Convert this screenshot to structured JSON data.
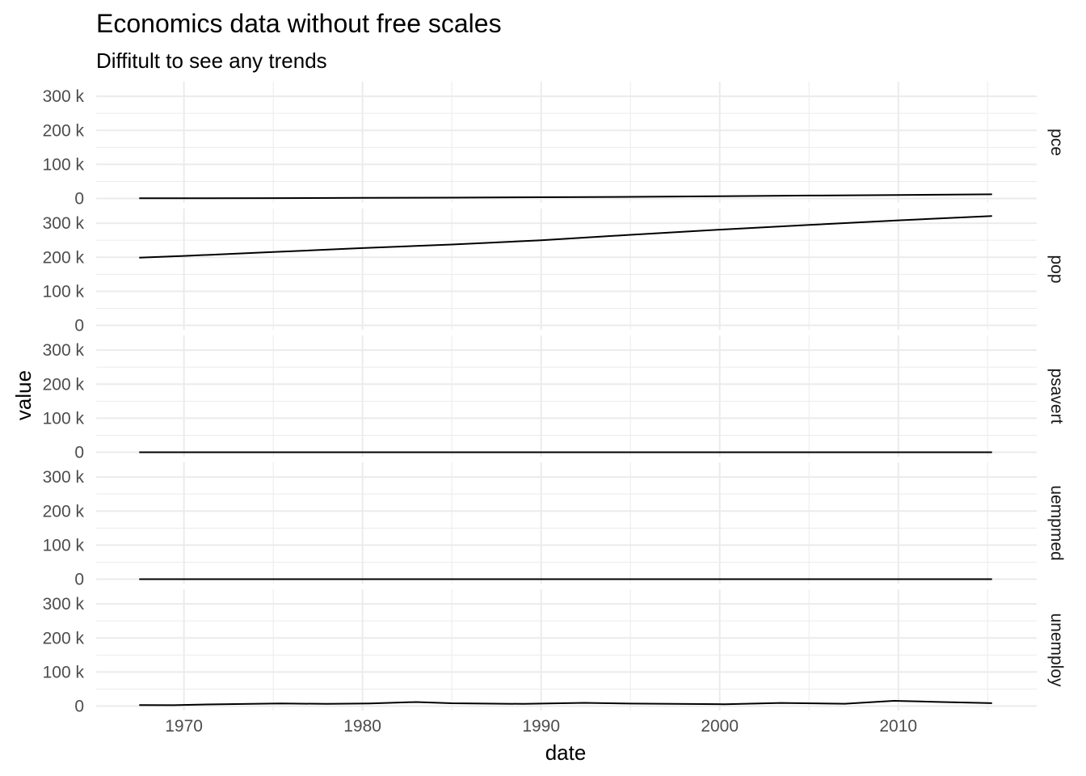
{
  "chart_data": {
    "type": "line",
    "title": "Economics data without free scales",
    "subtitle": "Diffitult to see any trends",
    "xlabel": "date",
    "ylabel": "value",
    "xlim": [
      "1965-02-01",
      "2017-10-01"
    ],
    "ylim": [
      -13000,
      343000
    ],
    "x_ticks": [
      {
        "date": "1970-01-01",
        "label": "1970"
      },
      {
        "date": "1980-01-01",
        "label": "1980"
      },
      {
        "date": "1990-01-01",
        "label": "1990"
      },
      {
        "date": "2000-01-01",
        "label": "2000"
      },
      {
        "date": "2010-01-01",
        "label": "2010"
      }
    ],
    "x_minor_ticks": [
      "1975-01-01",
      "1985-01-01",
      "1995-01-01",
      "2005-01-01",
      "2015-01-01"
    ],
    "y_ticks": [
      {
        "value": 0,
        "label": "0"
      },
      {
        "value": 100000,
        "label": "100 k"
      },
      {
        "value": 200000,
        "label": "200 k"
      },
      {
        "value": 300000,
        "label": "300 k"
      }
    ],
    "y_minor_ticks": [
      50000,
      150000,
      250000
    ],
    "grid": true,
    "facets": [
      "pce",
      "pop",
      "psavert",
      "uempmed",
      "unemploy"
    ],
    "series": [
      {
        "name": "pce",
        "points": [
          [
            "1967-07-01",
            507
          ],
          [
            "1970-01-01",
            620
          ],
          [
            "1975-01-01",
            977
          ],
          [
            "1980-01-01",
            1697
          ],
          [
            "1985-01-01",
            2540
          ],
          [
            "1990-01-01",
            3713
          ],
          [
            "1995-01-01",
            4880
          ],
          [
            "2000-01-01",
            6541
          ],
          [
            "2005-01-01",
            8535
          ],
          [
            "2010-01-01",
            10057
          ],
          [
            "2015-04-01",
            12194
          ]
        ]
      },
      {
        "name": "pop",
        "points": [
          [
            "1967-07-01",
            198712
          ],
          [
            "1970-01-01",
            203849
          ],
          [
            "1975-01-01",
            215307
          ],
          [
            "1980-01-01",
            227061
          ],
          [
            "1985-01-01",
            237468
          ],
          [
            "1990-01-01",
            249700
          ],
          [
            "1995-01-01",
            265753
          ],
          [
            "2000-01-01",
            281083
          ],
          [
            "2005-01-01",
            294768
          ],
          [
            "2010-01-01",
            308417
          ],
          [
            "2015-04-01",
            320887
          ]
        ]
      },
      {
        "name": "psavert",
        "points": [
          [
            "1967-07-01",
            12.6
          ],
          [
            "1975-01-01",
            12.8
          ],
          [
            "1985-01-01",
            10.8
          ],
          [
            "1995-01-01",
            6.7
          ],
          [
            "2005-01-01",
            3.2
          ],
          [
            "2015-04-01",
            7.6
          ]
        ]
      },
      {
        "name": "uempmed",
        "points": [
          [
            "1967-07-01",
            4.5
          ],
          [
            "1975-01-01",
            6.3
          ],
          [
            "1985-01-01",
            6.8
          ],
          [
            "1995-01-01",
            8.1
          ],
          [
            "2005-01-01",
            8.5
          ],
          [
            "2010-06-01",
            25.2
          ],
          [
            "2015-04-01",
            12.0
          ]
        ]
      },
      {
        "name": "unemploy",
        "points": [
          [
            "1967-07-01",
            2944
          ],
          [
            "1969-06-01",
            2700
          ],
          [
            "1971-01-01",
            4500
          ],
          [
            "1975-06-01",
            8000
          ],
          [
            "1978-01-01",
            6500
          ],
          [
            "1980-06-01",
            8000
          ],
          [
            "1983-01-01",
            12000
          ],
          [
            "1985-01-01",
            8300
          ],
          [
            "1989-01-01",
            6500
          ],
          [
            "1992-06-01",
            9600
          ],
          [
            "1995-01-01",
            7300
          ],
          [
            "2000-04-01",
            5500
          ],
          [
            "2003-06-01",
            9200
          ],
          [
            "2007-01-01",
            6900
          ],
          [
            "2009-10-01",
            15400
          ],
          [
            "2012-01-01",
            12700
          ],
          [
            "2015-04-01",
            8500
          ]
        ]
      }
    ]
  }
}
